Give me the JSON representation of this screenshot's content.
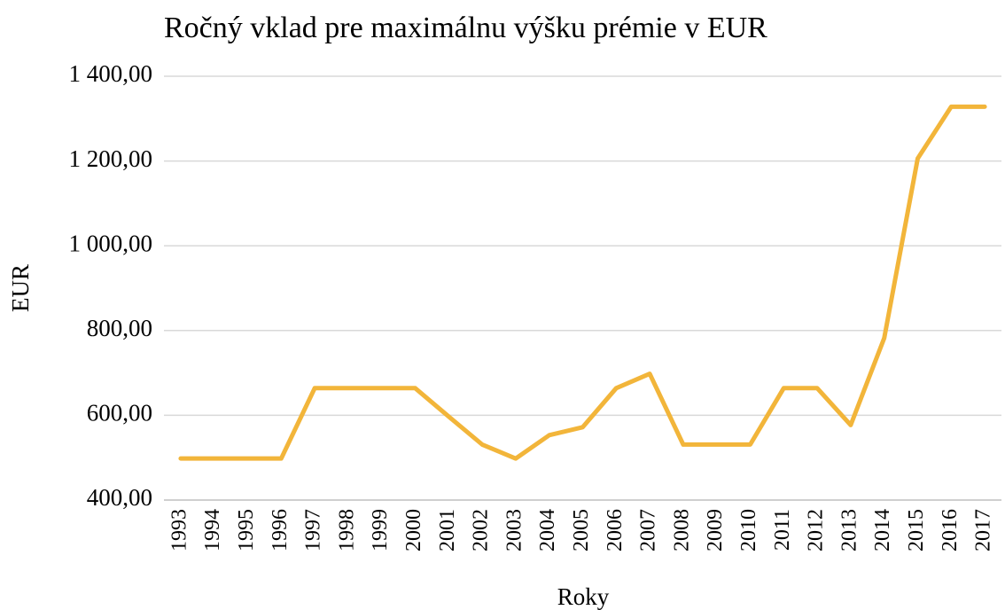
{
  "chart_data": {
    "type": "line",
    "title": "Ročný vklad pre maximálnu výšku prémie v EUR",
    "y_label": "EUR",
    "x_label": "Roky",
    "categories": [
      "1993",
      "1994",
      "1995",
      "1996",
      "1997",
      "1998",
      "1999",
      "2000",
      "2001",
      "2002",
      "2003",
      "2004",
      "2005",
      "2006",
      "2007",
      "2008",
      "2009",
      "2010",
      "2011",
      "2012",
      "2013",
      "2014",
      "2015",
      "2016",
      "2017"
    ],
    "series": [
      {
        "name": "Ročný vklad",
        "color": "#f2b53a",
        "values": [
          498,
          498,
          498,
          498,
          664,
          664,
          664,
          664,
          597,
          531,
          498,
          553,
          572,
          664,
          698,
          531,
          531,
          531,
          664,
          664,
          577,
          782,
          1206,
          1328,
          1328
        ]
      }
    ],
    "ylim": [
      400,
      1400
    ],
    "yticks": [
      {
        "value": 400,
        "label": "400,00"
      },
      {
        "value": 600,
        "label": "600,00"
      },
      {
        "value": 800,
        "label": "800,00"
      },
      {
        "value": 1000,
        "label": "1 000,00"
      },
      {
        "value": 1200,
        "label": "1 200,00"
      },
      {
        "value": 1400,
        "label": "1 400,00"
      }
    ],
    "grid": true
  }
}
